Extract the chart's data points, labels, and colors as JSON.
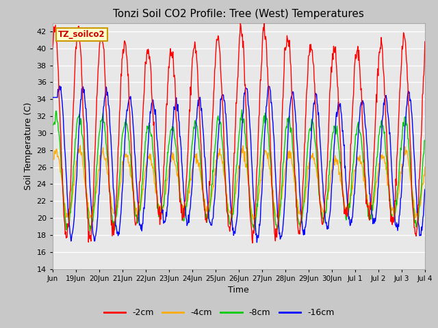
{
  "title": "Tonzi Soil CO2 Profile: Tree (West) Temperatures",
  "xlabel": "Time",
  "ylabel": "Soil Temperature (C)",
  "ylim": [
    14,
    43
  ],
  "yticks": [
    14,
    16,
    18,
    20,
    22,
    24,
    26,
    28,
    30,
    32,
    34,
    36,
    38,
    40,
    42
  ],
  "legend_label": "TZ_soilco2",
  "series_labels": [
    "-2cm",
    "-4cm",
    "-8cm",
    "-16cm"
  ],
  "series_colors": [
    "#ff0000",
    "#ffaa00",
    "#00cc00",
    "#0000ff"
  ],
  "fig_facecolor": "#d3d3d3",
  "plot_bg_color": "#e8e8e8",
  "grid_color": "#ffffff",
  "n_days": 16,
  "start_day": 18,
  "points_per_day": 48
}
